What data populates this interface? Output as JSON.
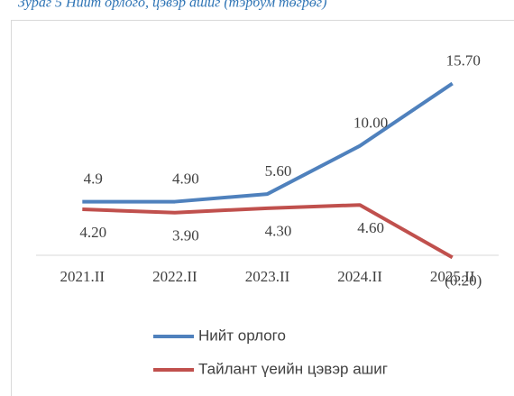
{
  "chart_data": {
    "type": "line",
    "title": "Зураг 5 Нийт орлого, цэвэр ашиг (тэрбум төгрөг)",
    "categories": [
      "2021.II",
      "2022.II",
      "2023.II",
      "2024.II",
      "2025.II"
    ],
    "series": [
      {
        "name": "Нийт орлого",
        "color": "#4f81bd",
        "values": [
          4.9,
          4.9,
          5.6,
          10,
          15.7
        ],
        "value_labels": [
          "4.9",
          "4.90",
          "5.60",
          "10.00",
          "15.70"
        ]
      },
      {
        "name": "Тайлант үеийн цэвэр ашиг",
        "color": "#c0504d",
        "values": [
          4.2,
          3.9,
          4.3,
          4.6,
          -0.2
        ],
        "value_labels": [
          "4.20",
          "3.90",
          "4.30",
          "4.60",
          "(0.20)"
        ]
      }
    ],
    "legend": "bottom"
  }
}
